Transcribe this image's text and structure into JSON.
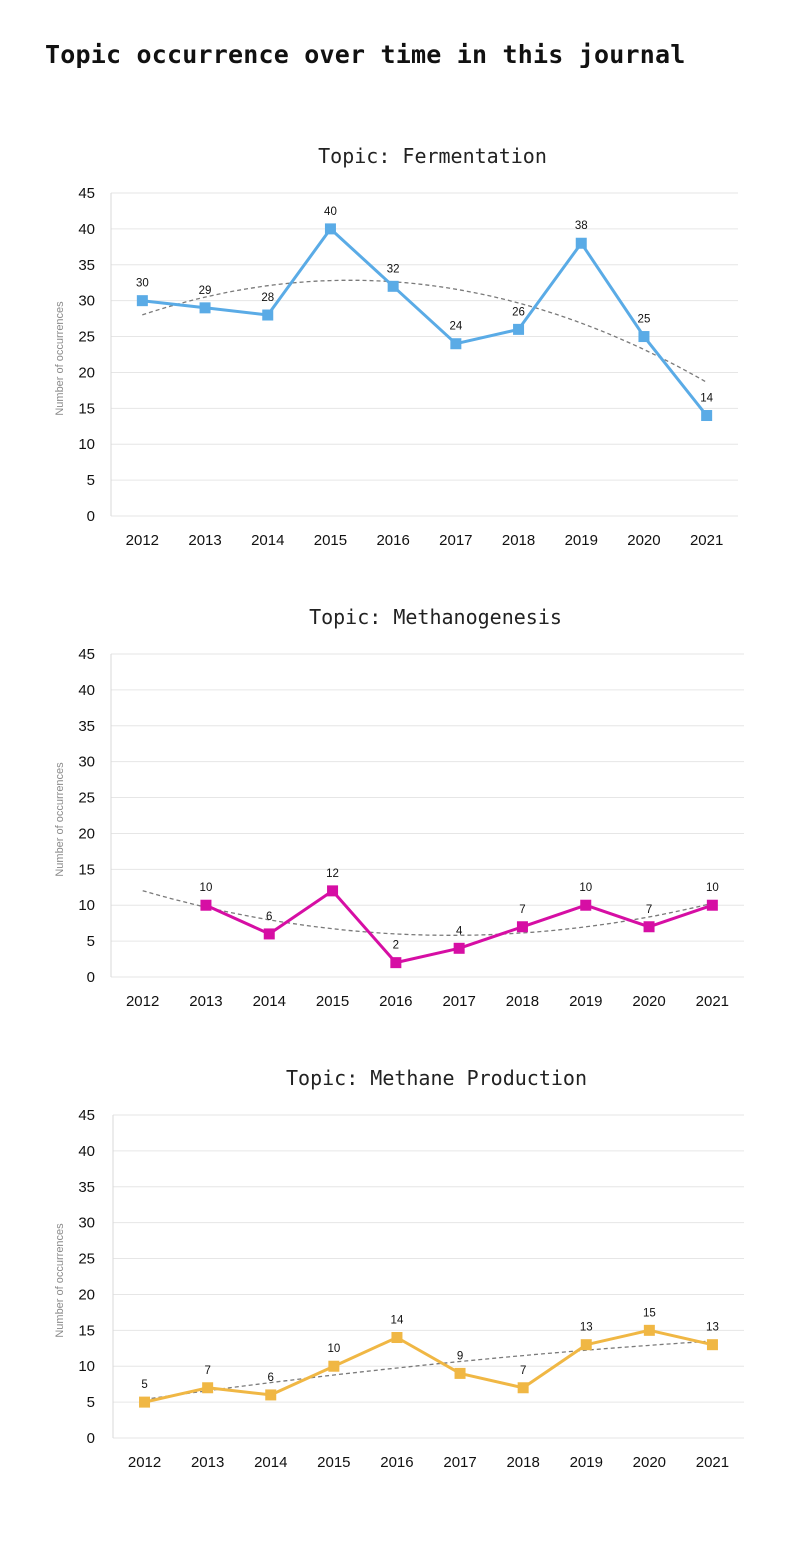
{
  "page": {
    "title": "Topic occurrence over time in this journal"
  },
  "chart_data": [
    {
      "type": "line",
      "title": "Topic: Fermentation",
      "ylabel": "Number of occurrences",
      "xlabel": "",
      "categories": [
        "2012",
        "2013",
        "2014",
        "2015",
        "2016",
        "2017",
        "2018",
        "2019",
        "2020",
        "2021"
      ],
      "values": [
        30,
        29,
        28,
        40,
        32,
        24,
        26,
        38,
        25,
        14
      ],
      "trendline": {
        "type": "polynomial",
        "start": 28.1,
        "end": 18.5
      },
      "ylim": [
        0,
        45
      ],
      "ytick_step": 5,
      "color": "#5aabe6",
      "grid": true
    },
    {
      "type": "line",
      "title": "Topic: Methanogenesis",
      "ylabel": "Number of occurrences",
      "xlabel": "",
      "categories": [
        "2012",
        "2013",
        "2014",
        "2015",
        "2016",
        "2017",
        "2018",
        "2019",
        "2020",
        "2021"
      ],
      "values": [
        null,
        10,
        6,
        12,
        2,
        4,
        7,
        10,
        7,
        10
      ],
      "trendline": {
        "type": "polynomial",
        "start": 12.1,
        "end": 10.2
      },
      "ylim": [
        0,
        45
      ],
      "ytick_step": 5,
      "color": "#d60ea4",
      "grid": true
    },
    {
      "type": "line",
      "title": "Topic: Methane Production",
      "ylabel": "Number of occurrences",
      "xlabel": "",
      "categories": [
        "2012",
        "2013",
        "2014",
        "2015",
        "2016",
        "2017",
        "2018",
        "2019",
        "2020",
        "2021"
      ],
      "values": [
        5,
        7,
        6,
        10,
        14,
        9,
        7,
        13,
        15,
        13
      ],
      "trendline": {
        "type": "polynomial",
        "start": 5.3,
        "end": 13.6
      },
      "ylim": [
        0,
        45
      ],
      "ytick_step": 5,
      "color": "#f0b744",
      "grid": true
    }
  ]
}
